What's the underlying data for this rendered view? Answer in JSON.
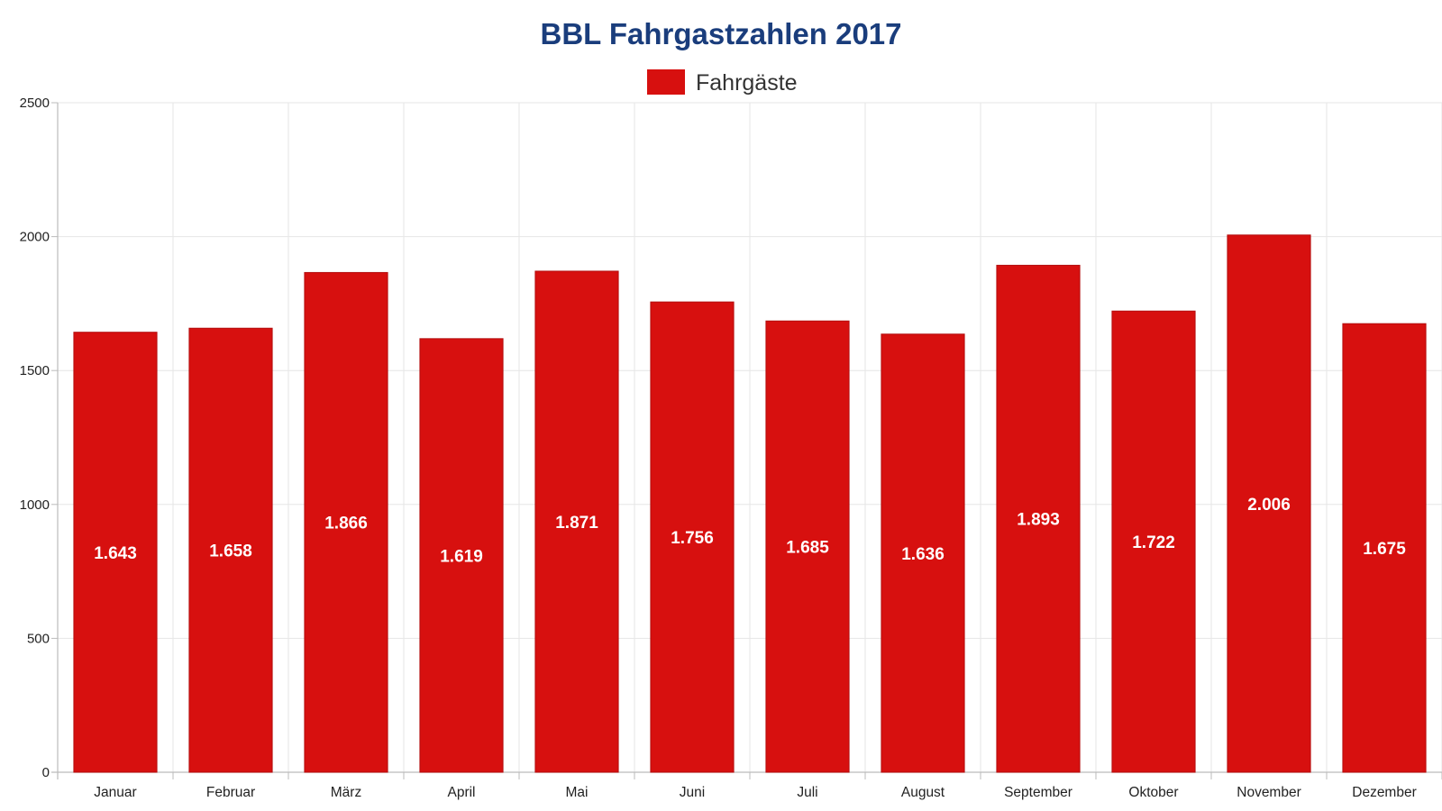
{
  "chart_data": {
    "type": "bar",
    "title": "BBL Fahrgastzahlen 2017",
    "legend_position": "top-center",
    "grid": true,
    "xlabel": "",
    "ylabel": "",
    "ylim": [
      0,
      2500
    ],
    "yticks": [
      0,
      500,
      1000,
      1500,
      2000,
      2500
    ],
    "categories": [
      "Januar",
      "Februar",
      "März",
      "April",
      "Mai",
      "Juni",
      "Juli",
      "August",
      "September",
      "Oktober",
      "November",
      "Dezember"
    ],
    "series": [
      {
        "name": "Fahrgäste",
        "color": "#d7100f",
        "values": [
          1643,
          1658,
          1866,
          1619,
          1871,
          1756,
          1685,
          1636,
          1893,
          1722,
          2006,
          1675
        ],
        "labels": [
          "1.643",
          "1.658",
          "1.866",
          "1.619",
          "1.871",
          "1.756",
          "1.685",
          "1.636",
          "1.893",
          "1.722",
          "2.006",
          "1.675"
        ]
      }
    ],
    "colors": {
      "title": "#1a3d7c",
      "bar": "#d7100f",
      "bar_border": "#b30c0c",
      "grid": "#e6e6e6",
      "axis": "#bbbbbb",
      "data_label": "#ffffff"
    }
  }
}
